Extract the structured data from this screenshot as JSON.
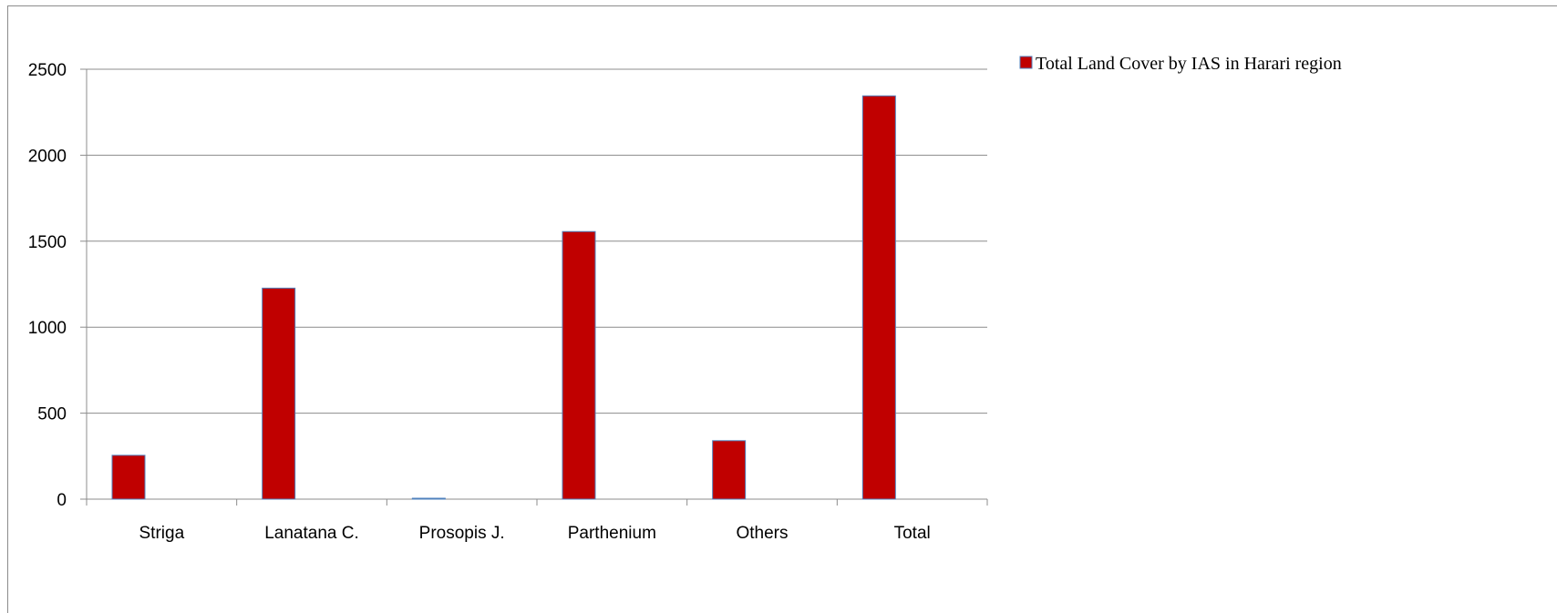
{
  "chart_data": {
    "type": "bar",
    "categories": [
      "Striga",
      "Lanatana C.",
      "Prosopis J.",
      "Parthenium",
      "Others",
      "Total"
    ],
    "series": [
      {
        "name": "Total Land Cover by IAS in Harari region",
        "values": [
          255,
          1227,
          0,
          1556,
          340,
          2345
        ],
        "color": "#c00000",
        "edge_color": "#4f81bd"
      }
    ],
    "ylim": [
      0,
      2500
    ],
    "yticks": [
      0,
      500,
      1000,
      1500,
      2000,
      2500
    ],
    "grid": true,
    "legend_position": "right"
  }
}
